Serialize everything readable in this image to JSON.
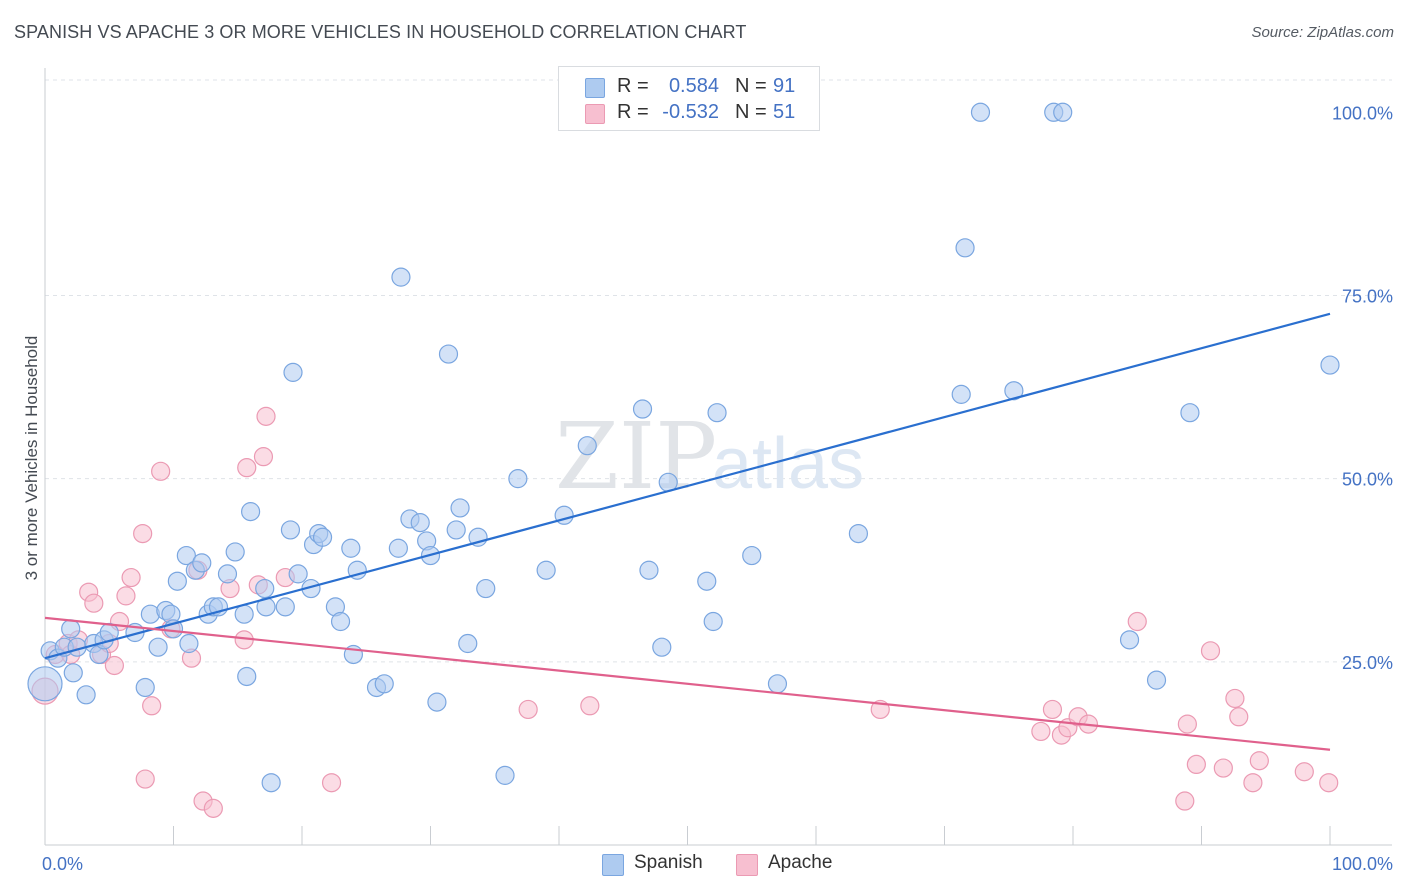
{
  "title": "SPANISH VS APACHE 3 OR MORE VEHICLES IN HOUSEHOLD CORRELATION CHART",
  "source": "Source: ZipAtlas.com",
  "watermark": {
    "zip": "ZIP",
    "atlas": "atlas"
  },
  "legend_top": [
    {
      "label": "R =",
      "r": "0.584",
      "n_label": "N =",
      "n": "91",
      "color": "#aecbf0"
    },
    {
      "label": "R =",
      "r": "-0.532",
      "n_label": "N =",
      "n": "51",
      "color": "#f7bfd0"
    }
  ],
  "legend_bottom": [
    {
      "name": "Spanish",
      "color": "#aecbf0"
    },
    {
      "name": "Apache",
      "color": "#f7bfd0"
    }
  ],
  "colors": {
    "spanish_fill": "rgba(174,203,240,0.55)",
    "spanish_stroke": "#7aa6e0",
    "spanish_line": "#2a6fcf",
    "apache_fill": "rgba(247,191,208,0.55)",
    "apache_stroke": "#eb9ab3",
    "apache_line": "#e0608c",
    "tick_label": "#4472c4",
    "grid": "#dfe3e8"
  },
  "chart_data": {
    "type": "scatter",
    "title": "SPANISH VS APACHE 3 OR MORE VEHICLES IN HOUSEHOLD CORRELATION CHART",
    "xlabel": "",
    "ylabel": "3 or more Vehicles in Household",
    "xlim": [
      0,
      100
    ],
    "ylim": [
      0,
      100
    ],
    "x_tick_labels": [
      "0.0%",
      "100.0%"
    ],
    "y_ticks": [
      25,
      50,
      75,
      100
    ],
    "y_tick_labels": [
      "25.0%",
      "50.0%",
      "75.0%",
      "100.0%"
    ],
    "grid": true,
    "legend_position": "top-center",
    "series": [
      {
        "name": "Spanish",
        "r": 0.584,
        "n": 91,
        "trend": {
          "x": [
            0,
            100
          ],
          "y": [
            25.5,
            72.5
          ]
        },
        "points": [
          [
            0,
            22,
            3
          ],
          [
            0.4,
            26.5,
            1
          ],
          [
            1,
            25.5,
            1
          ],
          [
            1.5,
            27,
            1
          ],
          [
            2,
            29.5,
            1
          ],
          [
            2.2,
            23.5,
            1
          ],
          [
            2.5,
            27,
            1
          ],
          [
            3.2,
            20.5,
            1
          ],
          [
            3.8,
            27.5,
            1
          ],
          [
            4.2,
            26,
            1
          ],
          [
            4.6,
            28,
            1
          ],
          [
            5,
            29,
            1
          ],
          [
            7,
            29,
            1
          ],
          [
            7.8,
            21.5,
            1
          ],
          [
            8.2,
            31.5,
            1
          ],
          [
            8.8,
            27,
            1
          ],
          [
            9.4,
            32,
            1
          ],
          [
            9.8,
            31.5,
            1
          ],
          [
            10,
            29.5,
            1
          ],
          [
            10.3,
            36,
            1
          ],
          [
            11,
            39.5,
            1
          ],
          [
            11.2,
            27.5,
            1
          ],
          [
            11.7,
            37.5,
            1
          ],
          [
            12.2,
            38.5,
            1
          ],
          [
            12.7,
            31.5,
            1
          ],
          [
            13.1,
            32.5,
            1
          ],
          [
            13.5,
            32.5,
            1
          ],
          [
            14.2,
            37,
            1
          ],
          [
            14.8,
            40,
            1
          ],
          [
            15.5,
            31.5,
            1
          ],
          [
            15.7,
            23,
            1
          ],
          [
            16,
            45.5,
            1
          ],
          [
            17.1,
            35,
            1
          ],
          [
            17.2,
            32.5,
            1
          ],
          [
            17.6,
            8.5,
            1
          ],
          [
            18.7,
            32.5,
            1
          ],
          [
            19.1,
            43,
            1
          ],
          [
            19.3,
            64.5,
            1
          ],
          [
            19.7,
            37,
            1
          ],
          [
            20.7,
            35,
            1
          ],
          [
            20.9,
            41,
            1
          ],
          [
            21.3,
            42.5,
            1
          ],
          [
            21.6,
            42,
            1
          ],
          [
            22.6,
            32.5,
            1
          ],
          [
            23,
            30.5,
            1
          ],
          [
            23.8,
            40.5,
            1
          ],
          [
            24,
            26,
            1
          ],
          [
            24.3,
            37.5,
            1
          ],
          [
            25.8,
            21.5,
            1
          ],
          [
            26.4,
            22,
            1
          ],
          [
            27.5,
            40.5,
            1
          ],
          [
            27.7,
            77.5,
            1
          ],
          [
            28.4,
            44.5,
            1
          ],
          [
            29.2,
            44,
            1
          ],
          [
            29.7,
            41.5,
            1
          ],
          [
            30,
            39.5,
            1
          ],
          [
            30.5,
            19.5,
            1
          ],
          [
            31.4,
            67,
            1
          ],
          [
            32,
            43,
            1
          ],
          [
            32.3,
            46,
            1
          ],
          [
            32.9,
            27.5,
            1
          ],
          [
            33.7,
            42,
            1
          ],
          [
            34.3,
            35,
            1
          ],
          [
            35.8,
            9.5,
            1
          ],
          [
            36.8,
            50,
            1
          ],
          [
            39,
            37.5,
            1
          ],
          [
            40.4,
            45,
            1
          ],
          [
            42.2,
            54.5,
            1
          ],
          [
            46.5,
            59.5,
            1
          ],
          [
            47,
            37.5,
            1
          ],
          [
            48,
            27,
            1
          ],
          [
            48.5,
            49.5,
            1
          ],
          [
            51.5,
            36,
            1
          ],
          [
            52,
            30.5,
            1
          ],
          [
            52.3,
            59,
            1
          ],
          [
            55,
            39.5,
            1
          ],
          [
            57,
            22,
            1
          ],
          [
            58,
            100,
            1
          ],
          [
            63.3,
            42.5,
            1
          ],
          [
            71.3,
            61.5,
            1
          ],
          [
            71.6,
            81.5,
            1
          ],
          [
            72.8,
            100,
            1
          ],
          [
            75.4,
            62,
            1
          ],
          [
            78.5,
            100,
            1
          ],
          [
            79.2,
            100,
            1
          ],
          [
            84.4,
            28,
            1
          ],
          [
            86.5,
            22.5,
            1
          ],
          [
            89.1,
            59,
            1
          ],
          [
            100,
            65.5,
            1
          ]
        ]
      },
      {
        "name": "Apache",
        "r": -0.532,
        "n": 51,
        "trend": {
          "x": [
            0,
            100
          ],
          "y": [
            31,
            13
          ]
        },
        "points": [
          [
            0,
            21,
            2
          ],
          [
            0.8,
            26,
            1
          ],
          [
            1.8,
            27.5,
            1
          ],
          [
            2,
            26,
            1
          ],
          [
            2.6,
            28,
            1
          ],
          [
            3.4,
            34.5,
            1
          ],
          [
            3.8,
            33,
            1
          ],
          [
            4.4,
            26,
            1
          ],
          [
            5,
            27.5,
            1
          ],
          [
            5.4,
            24.5,
            1
          ],
          [
            5.8,
            30.5,
            1
          ],
          [
            6.3,
            34,
            1
          ],
          [
            6.7,
            36.5,
            1
          ],
          [
            7.6,
            42.5,
            1
          ],
          [
            7.8,
            9,
            1
          ],
          [
            8.3,
            19,
            1
          ],
          [
            9,
            51,
            1
          ],
          [
            9.8,
            29.5,
            1
          ],
          [
            11.4,
            25.5,
            1
          ],
          [
            11.9,
            37.5,
            1
          ],
          [
            12.3,
            6,
            1
          ],
          [
            13.1,
            5,
            1
          ],
          [
            14.4,
            35,
            1
          ],
          [
            15.5,
            28,
            1
          ],
          [
            15.7,
            51.5,
            1
          ],
          [
            16.6,
            35.5,
            1
          ],
          [
            17,
            53,
            1
          ],
          [
            17.2,
            58.5,
            1
          ],
          [
            18.7,
            36.5,
            1
          ],
          [
            22.3,
            8.5,
            1
          ],
          [
            37.6,
            18.5,
            1
          ],
          [
            42.4,
            19,
            1
          ],
          [
            65,
            18.5,
            1
          ],
          [
            77.5,
            15.5,
            1
          ],
          [
            78.4,
            18.5,
            1
          ],
          [
            79.1,
            15,
            1
          ],
          [
            79.6,
            16,
            1
          ],
          [
            80.4,
            17.5,
            1
          ],
          [
            81.2,
            16.5,
            1
          ],
          [
            85,
            30.5,
            1
          ],
          [
            88.7,
            6,
            1
          ],
          [
            88.9,
            16.5,
            1
          ],
          [
            89.6,
            11,
            1
          ],
          [
            90.7,
            26.5,
            1
          ],
          [
            91.7,
            10.5,
            1
          ],
          [
            92.6,
            20,
            1
          ],
          [
            92.9,
            17.5,
            1
          ],
          [
            94,
            8.5,
            1
          ],
          [
            94.5,
            11.5,
            1
          ],
          [
            98,
            10,
            1
          ],
          [
            99.9,
            8.5,
            1
          ]
        ]
      }
    ]
  }
}
